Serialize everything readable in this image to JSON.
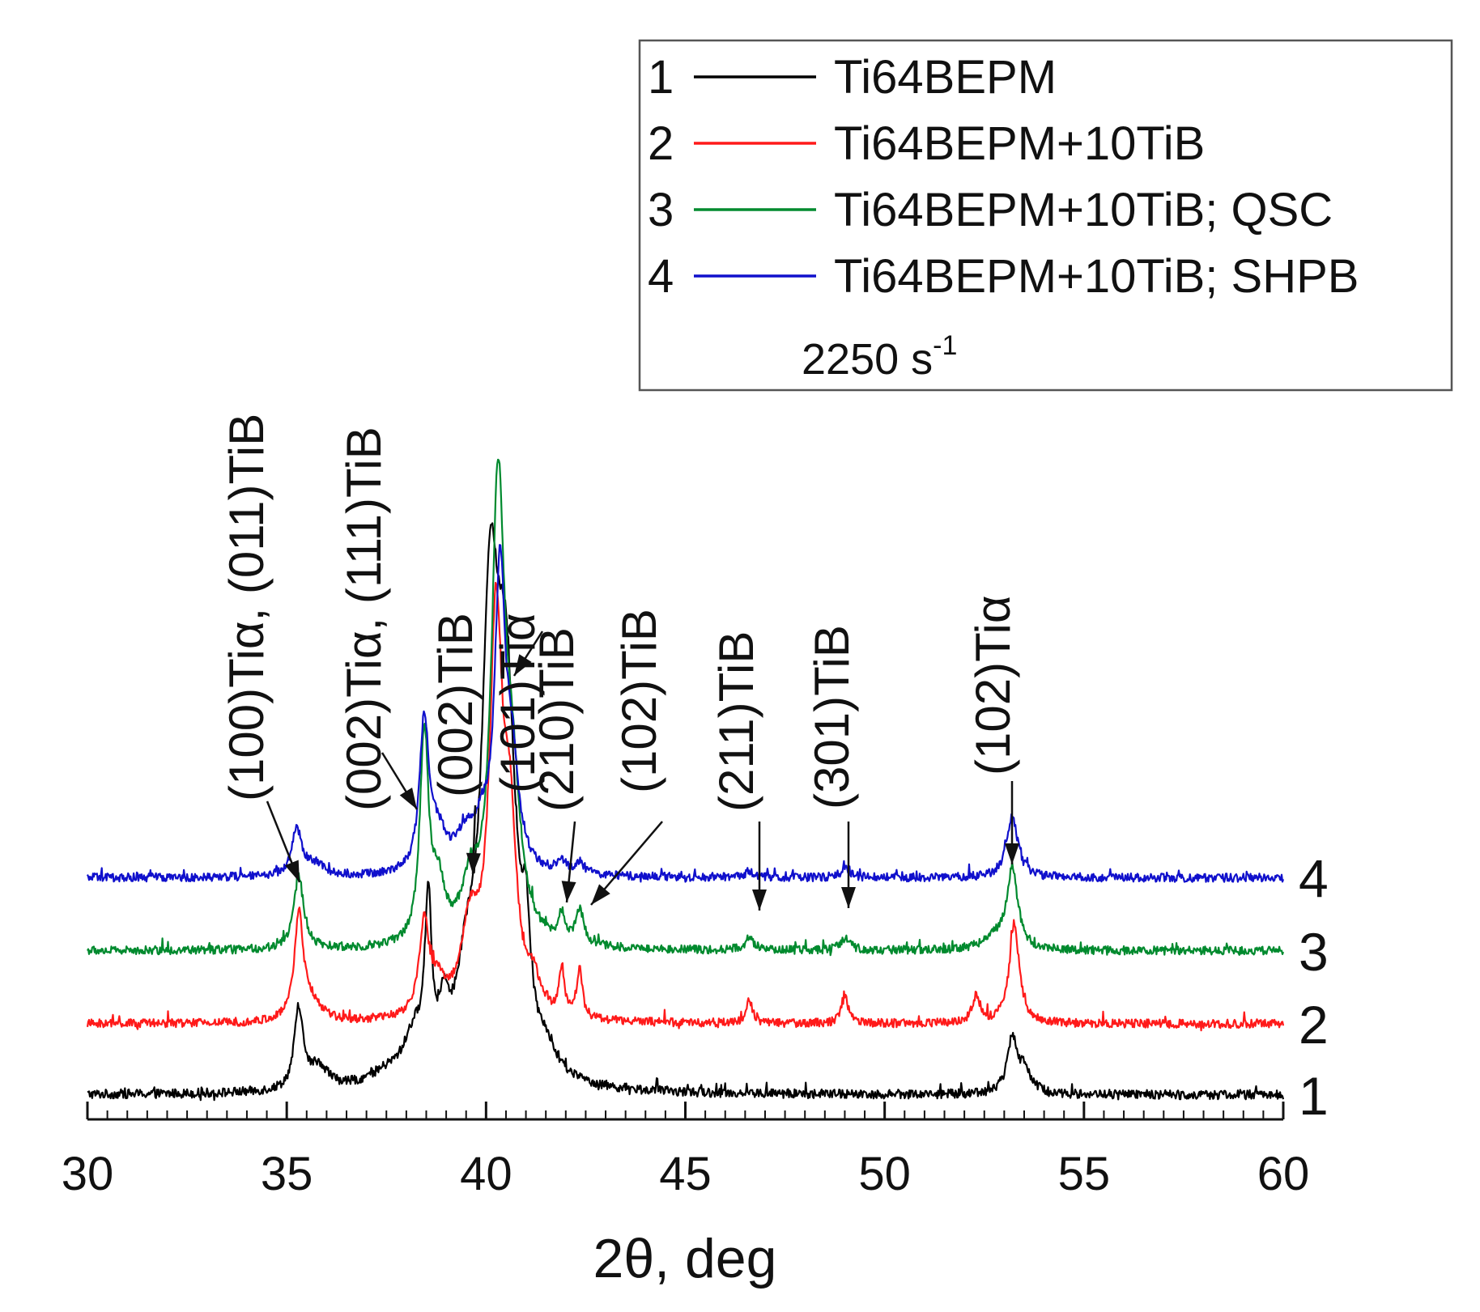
{
  "chart_data": {
    "type": "line",
    "title": "",
    "xlabel": "2θ, deg",
    "ylabel": "",
    "xlim": [
      30,
      60
    ],
    "xticks": [
      30,
      35,
      40,
      45,
      50,
      55,
      60
    ],
    "xtick_labels": [
      "30",
      "35",
      "40",
      "45",
      "50",
      "55",
      "60"
    ],
    "x_minor_step": 0.5,
    "y_scale": "arbitrary units, curves offset vertically",
    "series": [
      {
        "id": "1",
        "name": "Ti64BEPM",
        "color": "#000000",
        "baseline": 0,
        "noise": 1.2,
        "peaks": [
          [
            35.3,
            21,
            0.13
          ],
          [
            35.8,
            6,
            0.3
          ],
          [
            37.5,
            3,
            0.6
          ],
          [
            38.2,
            11,
            0.32
          ],
          [
            38.55,
            42,
            0.1
          ],
          [
            38.95,
            14,
            0.15
          ],
          [
            39.5,
            20,
            0.28
          ],
          [
            40.1,
            110,
            0.26
          ],
          [
            40.5,
            90,
            0.3
          ],
          [
            41.0,
            24,
            0.12
          ],
          [
            41.5,
            5,
            0.25
          ],
          [
            53.2,
            14,
            0.15
          ],
          [
            53.5,
            6,
            0.2
          ]
        ]
      },
      {
        "id": "2",
        "name": "Ti64BEPM+10TiB",
        "color": "#ff1a1a",
        "baseline": 18.5,
        "noise": 1.1,
        "peaks": [
          [
            35.3,
            27,
            0.13
          ],
          [
            35.6,
            5,
            0.3
          ],
          [
            38.45,
            24,
            0.15
          ],
          [
            38.8,
            7,
            0.2
          ],
          [
            39.6,
            22,
            0.28
          ],
          [
            40.25,
            100,
            0.2
          ],
          [
            40.6,
            42,
            0.2
          ],
          [
            41.2,
            8,
            0.15
          ],
          [
            41.9,
            12,
            0.08
          ],
          [
            42.35,
            13,
            0.08
          ],
          [
            46.6,
            6,
            0.1
          ],
          [
            49.0,
            7,
            0.1
          ],
          [
            52.3,
            7,
            0.12
          ],
          [
            53.25,
            26,
            0.15
          ]
        ]
      },
      {
        "id": "3",
        "name": "Ti64BEPM+10TiB; QSC",
        "color": "#008a2e",
        "baseline": 37.5,
        "noise": 1.1,
        "peaks": [
          [
            35.3,
            19,
            0.15
          ],
          [
            38.45,
            54,
            0.13
          ],
          [
            38.8,
            14,
            0.2
          ],
          [
            39.6,
            13,
            0.25
          ],
          [
            40.3,
            115,
            0.2
          ],
          [
            40.65,
            35,
            0.25
          ],
          [
            41.9,
            7,
            0.1
          ],
          [
            42.35,
            9,
            0.12
          ],
          [
            46.6,
            3,
            0.15
          ],
          [
            49.0,
            3,
            0.15
          ],
          [
            53.2,
            21,
            0.17
          ],
          [
            52.7,
            3,
            0.3
          ]
        ]
      },
      {
        "id": "4",
        "name": "Ti64BEPM+10TiB; SHPB",
        "color": "#1010cc",
        "baseline": 56.5,
        "noise": 1.1,
        "peaks": [
          [
            35.25,
            12,
            0.15
          ],
          [
            35.7,
            3,
            0.3
          ],
          [
            38.45,
            39,
            0.14
          ],
          [
            38.8,
            9,
            0.25
          ],
          [
            39.5,
            9,
            0.3
          ],
          [
            39.9,
            8,
            0.2
          ],
          [
            40.35,
            76,
            0.16
          ],
          [
            40.65,
            25,
            0.2
          ],
          [
            41.9,
            3,
            0.15
          ],
          [
            42.35,
            3,
            0.15
          ],
          [
            46.6,
            1.5,
            0.15
          ],
          [
            49.0,
            2,
            0.15
          ],
          [
            53.2,
            16,
            0.17
          ]
        ]
      }
    ],
    "curve_labels": [
      "1",
      "2",
      "3",
      "4"
    ],
    "legend": {
      "position": "top-right",
      "entries": [
        {
          "num": "1",
          "label": "Ti64BEPM",
          "color": "#000000"
        },
        {
          "num": "2",
          "label": "Ti64BEPM+10TiB",
          "color": "#ff1a1a"
        },
        {
          "num": "3",
          "label": "Ti64BEPM+10TiB; QSC",
          "color": "#008a2e"
        },
        {
          "num": "4",
          "label": "Ti64BEPM+10TiB; SHPB",
          "color": "#1010cc"
        }
      ],
      "note": "2250 s",
      "note_sup": "-1"
    },
    "annotations": [
      {
        "text": "(100)Tiα, (011)TiB",
        "x": 35.3
      },
      {
        "text": "(002)Tiα, (111)TiB",
        "x": 38.45
      },
      {
        "text": "(002)TiB",
        "x": 39.5
      },
      {
        "text": "(101)Tiα",
        "x": 40.3
      },
      {
        "text": "(210)TiB",
        "x": 41.9
      },
      {
        "text": "(102)TiB",
        "x": 42.35
      },
      {
        "text": "(211)TiB",
        "x": 46.7
      },
      {
        "text": "(301)TiB",
        "x": 49.0
      },
      {
        "text": "(102)Tiα",
        "x": 53.2
      }
    ]
  }
}
